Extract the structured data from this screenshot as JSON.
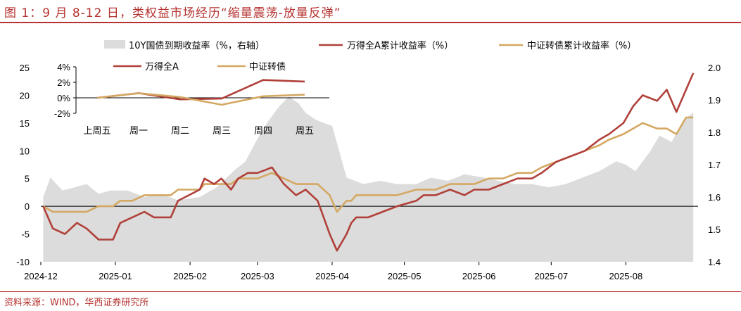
{
  "figure": {
    "title": "图 1：9 月 8-12 日，类权益市场经历“缩量震荡-放量反弹”",
    "source": "资料来源：WIND，华西证券研究所"
  },
  "colors": {
    "brand": "#b5322f",
    "wind_a": "#b0403a",
    "cb_index": "#d4a862",
    "bond_area": "#dcdcdc"
  },
  "chart_data": [
    {
      "type": "line",
      "x_type": "date",
      "x_ticks": [
        "2024-12",
        "2025-01",
        "2025-02",
        "2025-03",
        "2025-04",
        "2025-05",
        "2025-06",
        "2025-07",
        "2025-08"
      ],
      "ylim_left": [
        -10,
        25
      ],
      "y_ticks_left": [
        -10,
        -5,
        0,
        5,
        10,
        15,
        20,
        25
      ],
      "ylim_right": [
        1.4,
        2.0
      ],
      "y_ticks_right": [
        "1.4",
        "1.5",
        "1.6",
        "1.7",
        "1.8",
        "1.9",
        "2.0"
      ],
      "legend": [
        "10Y国债到期收益率（%，右轴）",
        "万得全A累计收益率（%）",
        "中证转债累计收益率（%）"
      ],
      "series": [
        {
          "name": "10Y国债到期收益率（%，右轴）",
          "type": "area",
          "axis": "right",
          "x": [
            "2024-12-02",
            "2024-12-05",
            "2024-12-10",
            "2024-12-15",
            "2024-12-20",
            "2024-12-25",
            "2024-12-30",
            "2025-01-06",
            "2025-01-13",
            "2025-01-20",
            "2025-01-27",
            "2025-02-05",
            "2025-02-12",
            "2025-02-19",
            "2025-02-24",
            "2025-03-01",
            "2025-03-05",
            "2025-03-10",
            "2025-03-14",
            "2025-03-18",
            "2025-03-21",
            "2025-03-25",
            "2025-03-28",
            "2025-04-01",
            "2025-04-07",
            "2025-04-14",
            "2025-04-21",
            "2025-04-28",
            "2025-05-06",
            "2025-05-12",
            "2025-05-19",
            "2025-05-26",
            "2025-06-03",
            "2025-06-09",
            "2025-06-16",
            "2025-06-23",
            "2025-06-30",
            "2025-07-07",
            "2025-07-14",
            "2025-07-21",
            "2025-07-28",
            "2025-08-01",
            "2025-08-05",
            "2025-08-11",
            "2025-08-15",
            "2025-08-20",
            "2025-08-25",
            "2025-08-29"
          ],
          "values": [
            1.6,
            1.66,
            1.62,
            1.63,
            1.64,
            1.61,
            1.62,
            1.62,
            1.6,
            1.61,
            1.59,
            1.6,
            1.63,
            1.68,
            1.71,
            1.78,
            1.83,
            1.88,
            1.91,
            1.89,
            1.86,
            1.84,
            1.83,
            1.82,
            1.66,
            1.64,
            1.65,
            1.64,
            1.64,
            1.66,
            1.65,
            1.67,
            1.66,
            1.65,
            1.64,
            1.64,
            1.63,
            1.64,
            1.66,
            1.68,
            1.71,
            1.7,
            1.68,
            1.74,
            1.79,
            1.77,
            1.84,
            1.86
          ]
        },
        {
          "name": "万得全A累计收益率（%）",
          "type": "line",
          "axis": "left",
          "x": [
            "2024-12-02",
            "2024-12-06",
            "2024-12-11",
            "2024-12-16",
            "2024-12-20",
            "2024-12-25",
            "2024-12-31",
            "2025-01-03",
            "2025-01-08",
            "2025-01-13",
            "2025-01-17",
            "2025-01-24",
            "2025-01-27",
            "2025-02-05",
            "2025-02-07",
            "2025-02-11",
            "2025-02-14",
            "2025-02-18",
            "2025-02-21",
            "2025-02-25",
            "2025-03-01",
            "2025-03-07",
            "2025-03-12",
            "2025-03-17",
            "2025-03-21",
            "2025-03-26",
            "2025-03-31",
            "2025-04-03",
            "2025-04-07",
            "2025-04-09",
            "2025-04-11",
            "2025-04-16",
            "2025-04-22",
            "2025-04-28",
            "2025-05-06",
            "2025-05-09",
            "2025-05-14",
            "2025-05-20",
            "2025-05-26",
            "2025-05-30",
            "2025-06-05",
            "2025-06-11",
            "2025-06-17",
            "2025-06-23",
            "2025-06-27",
            "2025-07-03",
            "2025-07-09",
            "2025-07-15",
            "2025-07-21",
            "2025-07-25",
            "2025-07-31",
            "2025-08-04",
            "2025-08-08",
            "2025-08-14",
            "2025-08-18",
            "2025-08-22",
            "2025-08-26",
            "2025-08-29"
          ],
          "values": [
            0,
            -4,
            -5,
            -3,
            -4,
            -6,
            -6,
            -3,
            -2,
            -1,
            -2,
            -2,
            1,
            3,
            5,
            4,
            5,
            3,
            5,
            6,
            6,
            7,
            4,
            2,
            3,
            1,
            -5,
            -8,
            -5,
            -3,
            -2,
            -2,
            -1,
            0,
            1,
            2,
            2,
            3,
            2,
            3,
            3,
            4,
            5,
            5,
            6,
            8,
            9,
            10,
            12,
            13,
            15,
            18,
            20,
            19,
            21,
            17,
            21,
            24
          ]
        },
        {
          "name": "中证转债累计收益率（%）",
          "type": "line",
          "axis": "left",
          "x": [
            "2024-12-02",
            "2024-12-06",
            "2024-12-11",
            "2024-12-16",
            "2024-12-20",
            "2024-12-25",
            "2024-12-31",
            "2025-01-03",
            "2025-01-08",
            "2025-01-13",
            "2025-01-17",
            "2025-01-24",
            "2025-01-27",
            "2025-02-05",
            "2025-02-07",
            "2025-02-11",
            "2025-02-14",
            "2025-02-18",
            "2025-02-21",
            "2025-02-25",
            "2025-03-01",
            "2025-03-07",
            "2025-03-12",
            "2025-03-17",
            "2025-03-21",
            "2025-03-26",
            "2025-03-31",
            "2025-04-03",
            "2025-04-07",
            "2025-04-09",
            "2025-04-11",
            "2025-04-16",
            "2025-04-22",
            "2025-04-28",
            "2025-05-06",
            "2025-05-09",
            "2025-05-14",
            "2025-05-20",
            "2025-05-26",
            "2025-05-30",
            "2025-06-05",
            "2025-06-11",
            "2025-06-17",
            "2025-06-23",
            "2025-06-27",
            "2025-07-03",
            "2025-07-09",
            "2025-07-15",
            "2025-07-21",
            "2025-07-25",
            "2025-07-31",
            "2025-08-04",
            "2025-08-08",
            "2025-08-14",
            "2025-08-18",
            "2025-08-22",
            "2025-08-26",
            "2025-08-29"
          ],
          "values": [
            0,
            -1,
            -1,
            -1,
            -1,
            0,
            0,
            1,
            1,
            2,
            2,
            2,
            3,
            3,
            4,
            4,
            4,
            4,
            5,
            5,
            5,
            6,
            5,
            4,
            4,
            4,
            2,
            -1,
            1,
            1,
            2,
            2,
            2,
            2,
            3,
            3,
            3,
            4,
            4,
            4,
            5,
            5,
            6,
            6,
            7,
            8,
            9,
            10,
            11,
            12,
            13,
            14,
            15,
            14,
            14,
            13,
            16,
            16
          ]
        }
      ]
    },
    {
      "type": "line",
      "inset": true,
      "categories": [
        "上周五",
        "周一",
        "周二",
        "周三",
        "周四",
        "周五"
      ],
      "ylim": [
        -2,
        4
      ],
      "y_ticks": [
        "4%",
        "2%",
        "0%",
        "-2%"
      ],
      "series": [
        {
          "name": "万得全A",
          "values": [
            0,
            0.6,
            -0.2,
            -0.1,
            2.3,
            2.1
          ]
        },
        {
          "name": "中证转债",
          "values": [
            0,
            0.6,
            0.1,
            -0.9,
            0.2,
            0.4
          ]
        }
      ]
    }
  ]
}
